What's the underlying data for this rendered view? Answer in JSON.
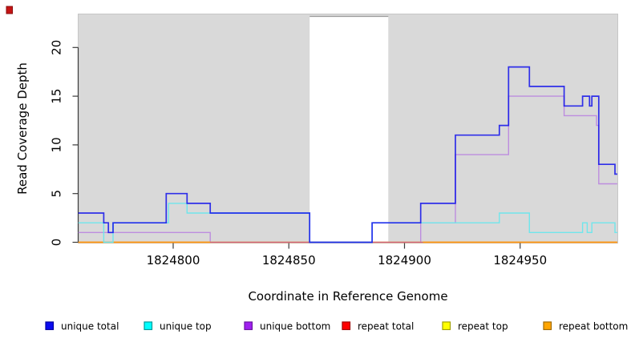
{
  "figure": {
    "background": "#ffffff",
    "corner_marker_color": "#c41414",
    "corner_marker_border": "#8a0d0d"
  },
  "chart_data": {
    "type": "line",
    "subtype": "step",
    "title": "",
    "xlabel": "Coordinate in Reference Genome",
    "ylabel": "Read Coverage Depth",
    "xlim": [
      1824759,
      1824992
    ],
    "ylim": [
      0,
      23.4
    ],
    "x_ticks": [
      1824800,
      1824850,
      1824900,
      1824950
    ],
    "x_tick_labels": [
      "1824800",
      "1824850",
      "1824900",
      "1824950"
    ],
    "y_ticks": [
      0,
      5,
      10,
      15,
      20
    ],
    "y_tick_labels": [
      "0",
      "5",
      "10",
      "15",
      "20"
    ],
    "grid": false,
    "legend_position": "bottom",
    "panel_bg": "#d9d9d9",
    "panel_border": "#c6c6c6",
    "gap_band": {
      "from": 1824859,
      "to": 1824893,
      "color": "#ffffff",
      "top_edge": "#9c9c9c"
    },
    "axis_color": "#3a3a3a",
    "series": [
      {
        "name": "unique total",
        "line_color": "rgba(16,16,235,0.85)",
        "line_width": 1.7,
        "legend_fill": "#0b0bf0",
        "legend_border": "#0000a0",
        "steps": [
          [
            1824759,
            3
          ],
          [
            1824770,
            2
          ],
          [
            1824772,
            1
          ],
          [
            1824774,
            2
          ],
          [
            1824797,
            5
          ],
          [
            1824806,
            4
          ],
          [
            1824816,
            3
          ],
          [
            1824859,
            0
          ],
          [
            1824886,
            2
          ],
          [
            1824907,
            4
          ],
          [
            1824922,
            11
          ],
          [
            1824941,
            12
          ],
          [
            1824945,
            18
          ],
          [
            1824954,
            16
          ],
          [
            1824969,
            14
          ],
          [
            1824977,
            15
          ],
          [
            1824980,
            14
          ],
          [
            1824981,
            15
          ],
          [
            1824984,
            8
          ],
          [
            1824991,
            7
          ]
        ]
      },
      {
        "name": "unique top",
        "line_color": "#6fe6ec",
        "line_width": 1.4,
        "legend_fill": "#00ffff",
        "legend_border": "#009a9a",
        "steps": [
          [
            1824759,
            2
          ],
          [
            1824770,
            0
          ],
          [
            1824774,
            2
          ],
          [
            1824798,
            4
          ],
          [
            1824806,
            3
          ],
          [
            1824859,
            0
          ],
          [
            1824886,
            2
          ],
          [
            1824941,
            3
          ],
          [
            1824954,
            1
          ],
          [
            1824977,
            2
          ],
          [
            1824979,
            1
          ],
          [
            1824981,
            2
          ],
          [
            1824991,
            1
          ]
        ]
      },
      {
        "name": "unique bottom",
        "line_color": "#bd8ddf",
        "line_width": 1.4,
        "legend_fill": "#a020f0",
        "legend_border": "#6a14a0",
        "steps": [
          [
            1824759,
            1
          ],
          [
            1824816,
            0
          ],
          [
            1824907,
            2
          ],
          [
            1824922,
            9
          ],
          [
            1824945,
            15
          ],
          [
            1824969,
            13
          ],
          [
            1824983,
            12
          ],
          [
            1824984,
            6
          ]
        ]
      },
      {
        "name": "repeat total",
        "line_color": "#d4627a",
        "line_width": 1.4,
        "legend_fill": "#ff0000",
        "legend_border": "#a00000",
        "steps": [
          [
            1824759,
            0
          ]
        ]
      },
      {
        "name": "repeat top",
        "line_color": "#ffff00",
        "line_width": 1.4,
        "legend_fill": "#ffff00",
        "legend_border": "#a0a000",
        "steps": [
          [
            1824759,
            0
          ]
        ]
      },
      {
        "name": "repeat bottom",
        "line_color": "#ff9913",
        "line_width": 1.8,
        "legend_fill": "#ffa500",
        "legend_border": "#a06a00",
        "steps": [
          [
            1824759,
            0
          ]
        ],
        "visible_ranges": [
          [
            1824759,
            1824816
          ],
          [
            1824908,
            1824992
          ]
        ]
      }
    ],
    "draw_order": [
      "unique bottom",
      "repeat top",
      "repeat total",
      "repeat bottom",
      "unique top",
      "unique total"
    ]
  }
}
